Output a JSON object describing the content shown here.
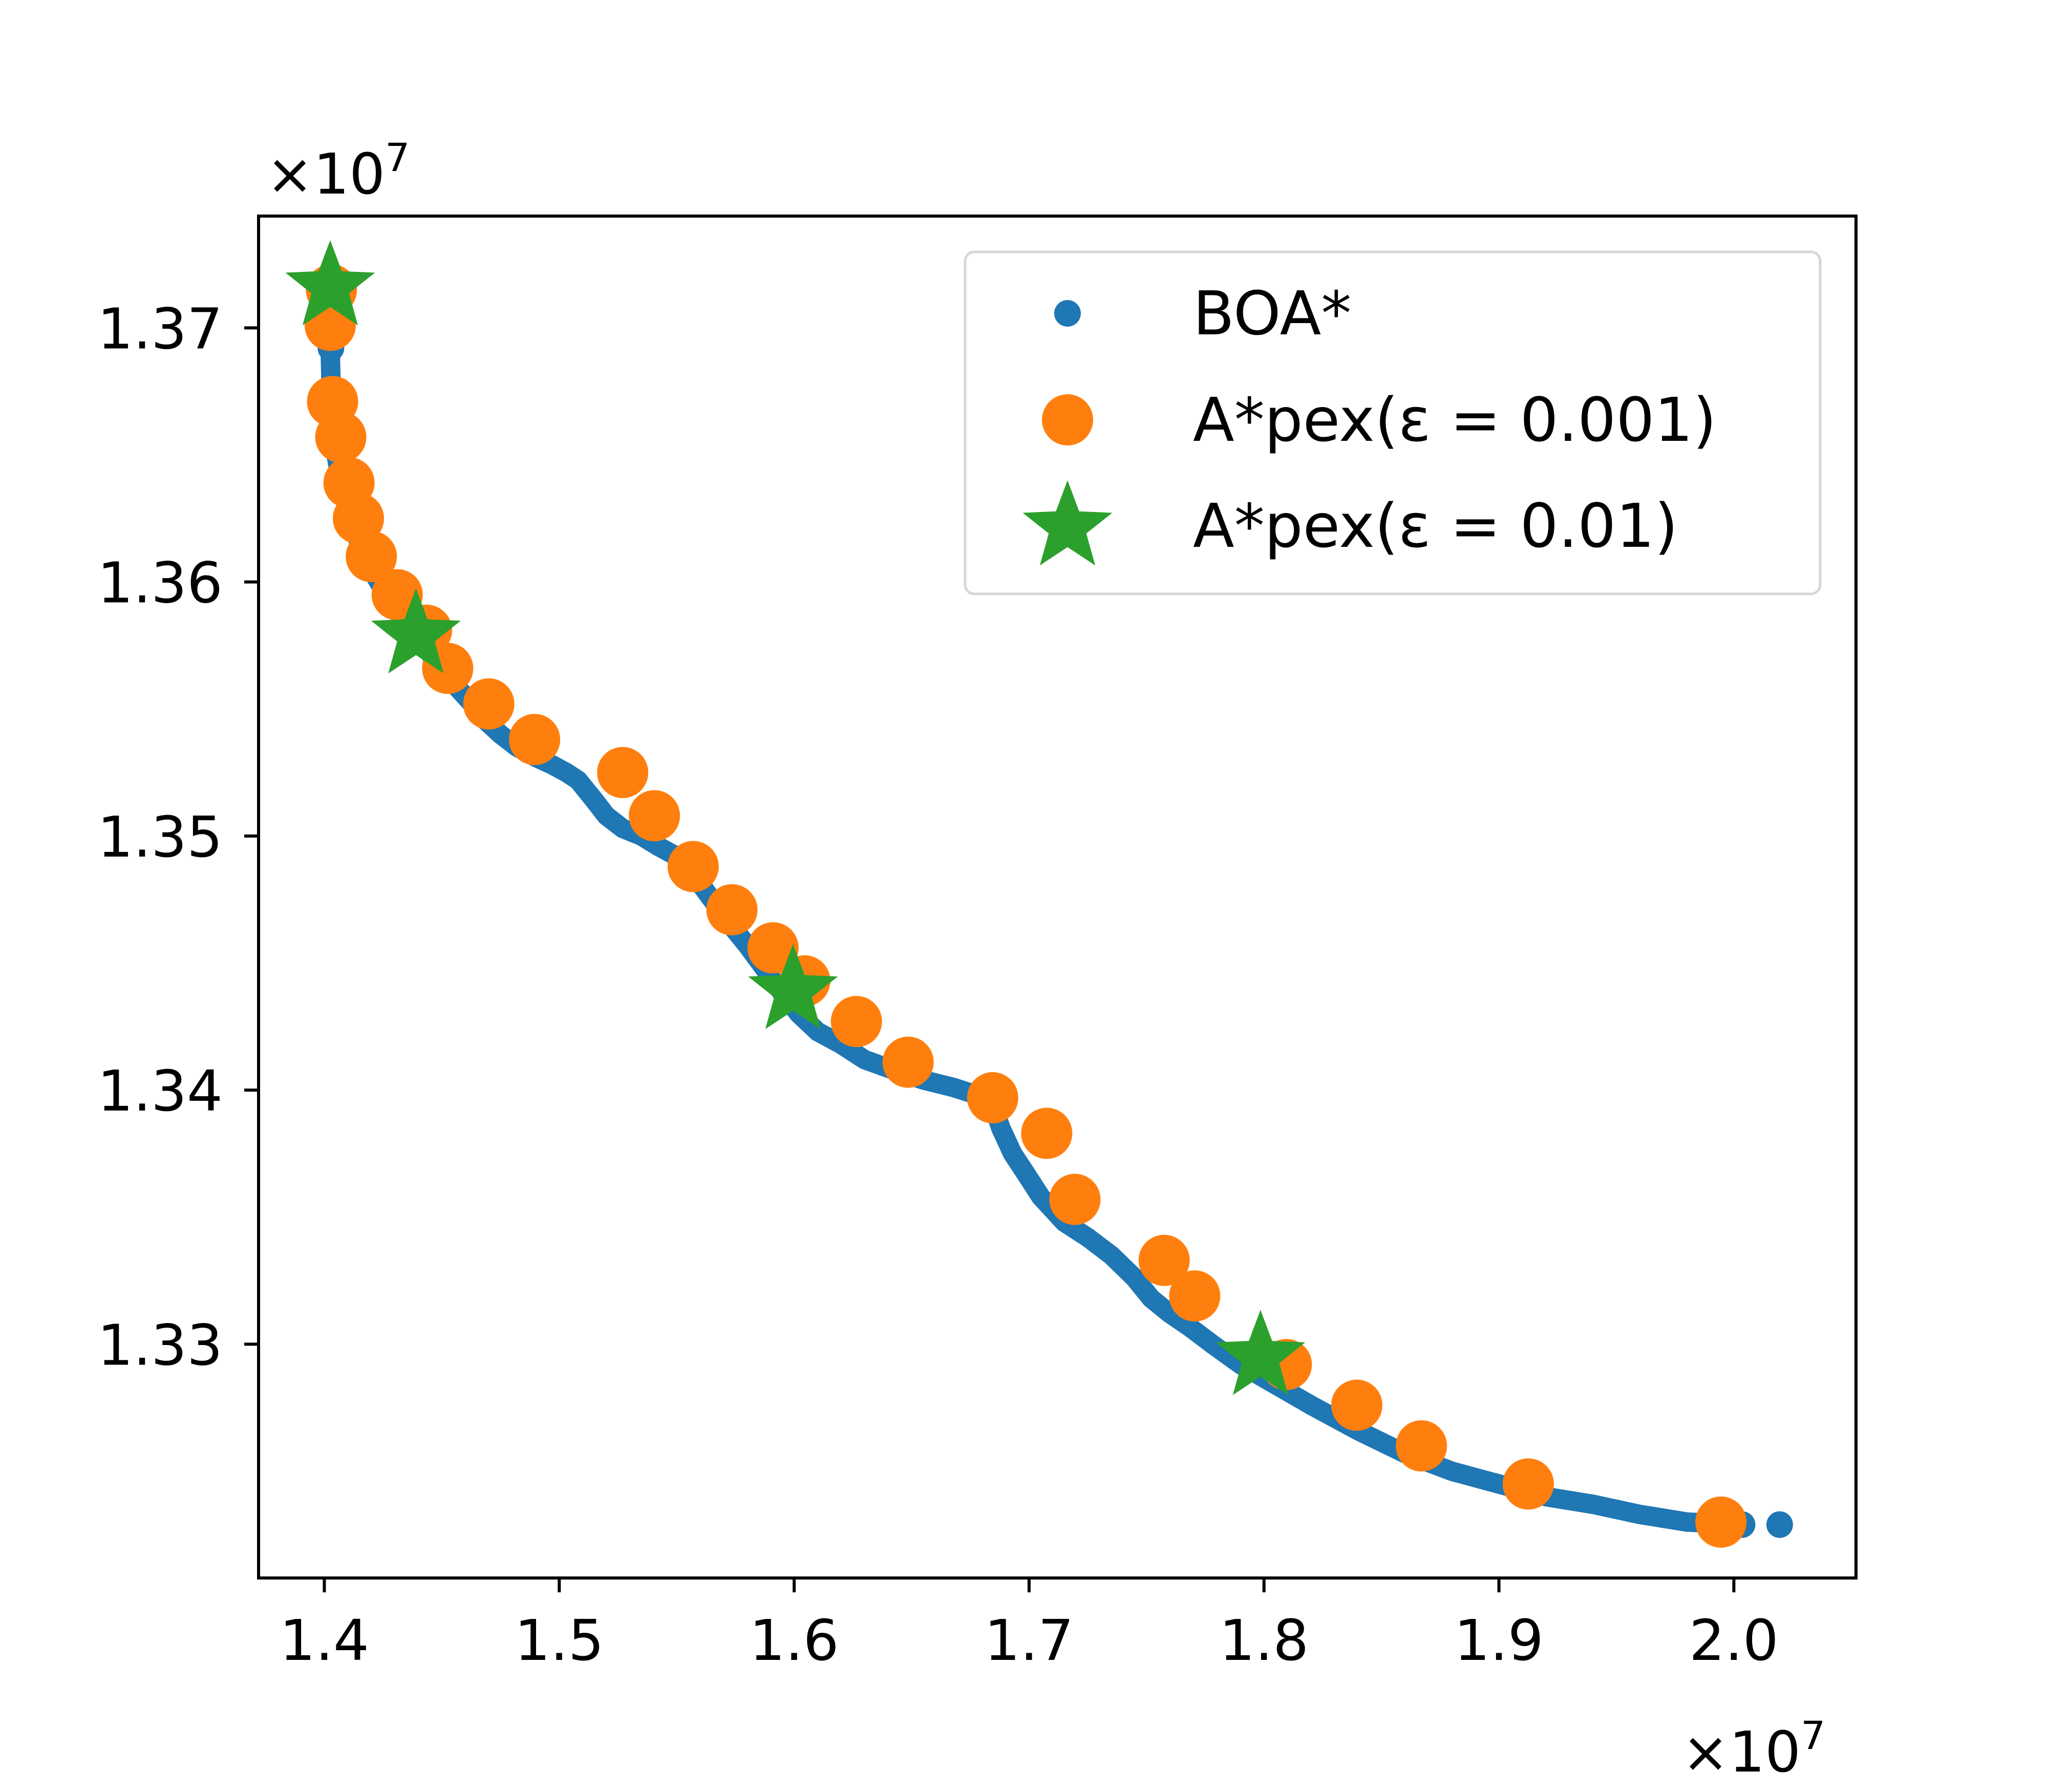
{
  "chart_data": {
    "type": "scatter",
    "x_offset_label": "×10",
    "x_offset_exp": "7",
    "y_offset_label": "×10",
    "y_offset_exp": "7",
    "xlim": [
      1.372,
      2.052
    ],
    "ylim": [
      1.3208,
      1.3744
    ],
    "x_ticks": [
      {
        "value": 1.4,
        "label": "1.4"
      },
      {
        "value": 1.5,
        "label": "1.5"
      },
      {
        "value": 1.6,
        "label": "1.6"
      },
      {
        "value": 1.7,
        "label": "1.7"
      },
      {
        "value": 1.8,
        "label": "1.8"
      },
      {
        "value": 1.9,
        "label": "1.9"
      },
      {
        "value": 2.0,
        "label": "2.0"
      }
    ],
    "y_ticks": [
      {
        "value": 1.33,
        "label": "1.33"
      },
      {
        "value": 1.34,
        "label": "1.34"
      },
      {
        "value": 1.35,
        "label": "1.35"
      },
      {
        "value": 1.36,
        "label": "1.36"
      },
      {
        "value": 1.37,
        "label": "1.37"
      }
    ],
    "grid": false,
    "legend_position": "top-right",
    "series": [
      {
        "name": "BOA*",
        "marker": "dot",
        "color": "#1f77b4",
        "curve": [
          [
            1.4025,
            1.3692
          ],
          [
            1.403,
            1.3672
          ],
          [
            1.405,
            1.365
          ],
          [
            1.408,
            1.3635
          ],
          [
            1.412,
            1.3622
          ],
          [
            1.418,
            1.3608
          ],
          [
            1.425,
            1.3597
          ],
          [
            1.432,
            1.3587
          ],
          [
            1.44,
            1.3578
          ],
          [
            1.448,
            1.3568
          ],
          [
            1.455,
            1.356
          ],
          [
            1.462,
            1.3553
          ],
          [
            1.468,
            1.3546
          ],
          [
            1.475,
            1.354
          ],
          [
            1.482,
            1.3535
          ],
          [
            1.49,
            1.3531
          ],
          [
            1.497,
            1.3528
          ],
          [
            1.503,
            1.3525
          ],
          [
            1.508,
            1.3522
          ],
          [
            1.515,
            1.3514
          ],
          [
            1.52,
            1.3508
          ],
          [
            1.527,
            1.3503
          ],
          [
            1.535,
            1.35
          ],
          [
            1.542,
            1.3496
          ],
          [
            1.55,
            1.3492
          ],
          [
            1.557,
            1.3485
          ],
          [
            1.565,
            1.3475
          ],
          [
            1.573,
            1.3465
          ],
          [
            1.58,
            1.3457
          ],
          [
            1.588,
            1.3447
          ],
          [
            1.595,
            1.3438
          ],
          [
            1.602,
            1.343
          ],
          [
            1.61,
            1.3423
          ],
          [
            1.62,
            1.3418
          ],
          [
            1.63,
            1.3412
          ],
          [
            1.642,
            1.3408
          ],
          [
            1.655,
            1.3404
          ],
          [
            1.668,
            1.3401
          ],
          [
            1.678,
            1.3398
          ],
          [
            1.685,
            1.3393
          ],
          [
            1.688,
            1.3385
          ],
          [
            1.693,
            1.3375
          ],
          [
            1.698,
            1.3368
          ],
          [
            1.705,
            1.3358
          ],
          [
            1.715,
            1.3348
          ],
          [
            1.725,
            1.3342
          ],
          [
            1.735,
            1.3335
          ],
          [
            1.745,
            1.3326
          ],
          [
            1.752,
            1.3318
          ],
          [
            1.76,
            1.3312
          ],
          [
            1.768,
            1.3307
          ],
          [
            1.778,
            1.33
          ],
          [
            1.79,
            1.3292
          ],
          [
            1.805,
            1.3284
          ],
          [
            1.82,
            1.3276
          ],
          [
            1.84,
            1.3266
          ],
          [
            1.86,
            1.3257
          ],
          [
            1.88,
            1.325
          ],
          [
            1.9,
            1.3245
          ],
          [
            1.92,
            1.324
          ],
          [
            1.94,
            1.3237
          ],
          [
            1.96,
            1.3233
          ],
          [
            1.98,
            1.323
          ],
          [
            2.005,
            1.3229
          ]
        ],
        "points": [
          [
            1.4028,
            1.3692
          ],
          [
            2.0035,
            1.3229
          ],
          [
            2.0195,
            1.3229
          ]
        ]
      },
      {
        "name": "A*pex(ε = 0.001)",
        "marker": "circle",
        "color": "#ff7f0e",
        "points": [
          [
            1.403,
            1.3715
          ],
          [
            1.4025,
            1.3701
          ],
          [
            1.4035,
            1.3671
          ],
          [
            1.407,
            1.3657
          ],
          [
            1.4105,
            1.3639
          ],
          [
            1.4145,
            1.3625
          ],
          [
            1.42,
            1.361
          ],
          [
            1.431,
            1.3595
          ],
          [
            1.4435,
            1.3581
          ],
          [
            1.4525,
            1.3566
          ],
          [
            1.47,
            1.3552
          ],
          [
            1.4895,
            1.3538
          ],
          [
            1.527,
            1.3525
          ],
          [
            1.5405,
            1.3508
          ],
          [
            1.557,
            1.3488
          ],
          [
            1.5735,
            1.3471
          ],
          [
            1.591,
            1.3456
          ],
          [
            1.6045,
            1.3443
          ],
          [
            1.6265,
            1.3427
          ],
          [
            1.6485,
            1.3411
          ],
          [
            1.6845,
            1.3397
          ],
          [
            1.7075,
            1.3383
          ],
          [
            1.7195,
            1.3357
          ],
          [
            1.7575,
            1.3333
          ],
          [
            1.7705,
            1.3319
          ],
          [
            1.8095,
            1.3292
          ],
          [
            1.8395,
            1.3276
          ],
          [
            1.867,
            1.326
          ],
          [
            1.9125,
            1.3245
          ],
          [
            1.9945,
            1.323
          ]
        ]
      },
      {
        "name": "A*pex(ε = 0.01)",
        "marker": "star",
        "color": "#2ca02c",
        "points": [
          [
            1.4025,
            1.3716
          ],
          [
            1.439,
            1.3579
          ],
          [
            1.5995,
            1.3439
          ],
          [
            1.7985,
            1.3295
          ]
        ]
      }
    ]
  }
}
